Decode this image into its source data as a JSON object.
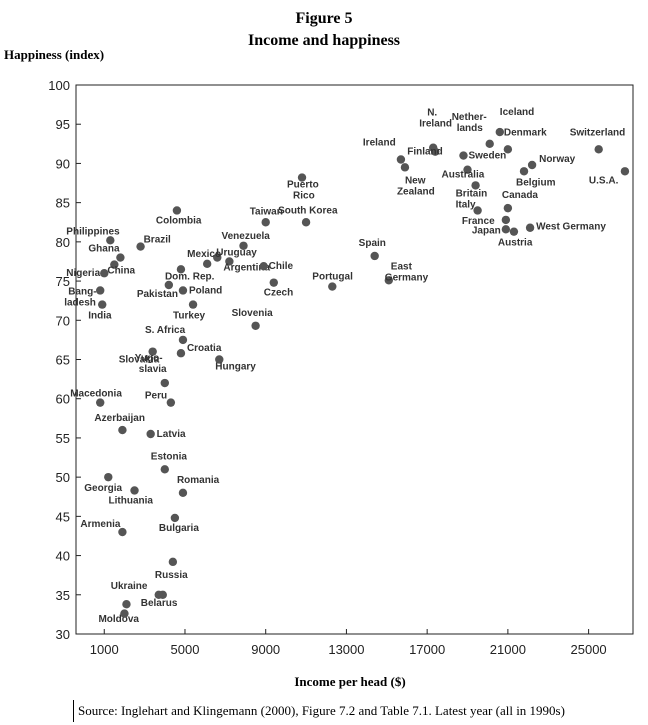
{
  "figure": {
    "number": "Figure 5",
    "title": "Income and happiness",
    "source": "Source: Inglehart and Klingemann (2000), Figure 7.2 and Table 7.1. Latest year (all in 1990s)"
  },
  "chart_data": {
    "type": "scatter",
    "title": "Income and happiness",
    "xlabel": "Income per head ($)",
    "ylabel": "Happiness (index)",
    "xlim": [
      -400,
      27200
    ],
    "ylim": [
      30,
      100
    ],
    "xticks": [
      1000,
      5000,
      9000,
      13000,
      17000,
      21000,
      25000
    ],
    "xtick_labels": [
      "1000",
      "5000",
      "9000",
      "13000",
      "17000",
      "21000",
      "25000"
    ],
    "yticks": [
      30,
      35,
      40,
      45,
      50,
      55,
      60,
      65,
      70,
      75,
      80,
      85,
      90,
      95,
      100
    ],
    "ytick_labels": [
      "30",
      "35",
      "40",
      "45",
      "50",
      "55",
      "60",
      "65",
      "70",
      "75",
      "80",
      "85",
      "90",
      "95",
      "100"
    ],
    "grid": false,
    "points": [
      {
        "label": "Iceland",
        "x": 20600,
        "y": 94.0
      },
      {
        "label": "N. Ireland",
        "x": 17300,
        "y": 92.0
      },
      {
        "label": "Nether-lands",
        "x": 20100,
        "y": 92.5
      },
      {
        "label": "Denmark",
        "x": 21000,
        "y": 91.8
      },
      {
        "label": "Switzerland",
        "x": 25500,
        "y": 91.8
      },
      {
        "label": "Ireland",
        "x": 15700,
        "y": 90.5
      },
      {
        "label": "Finland",
        "x": 17400,
        "y": 91.5
      },
      {
        "label": "Sweden",
        "x": 18800,
        "y": 91.0
      },
      {
        "label": "Norway",
        "x": 22200,
        "y": 89.8
      },
      {
        "label": "U.S.A.",
        "x": 26800,
        "y": 89.0
      },
      {
        "label": "New Zealand",
        "x": 15900,
        "y": 89.5
      },
      {
        "label": "Australia",
        "x": 19000,
        "y": 89.2
      },
      {
        "label": "Belgium",
        "x": 21800,
        "y": 89.0
      },
      {
        "label": "Britain",
        "x": 19400,
        "y": 87.2
      },
      {
        "label": "Puerto Rico",
        "x": 10800,
        "y": 88.2
      },
      {
        "label": "Canada",
        "x": 21000,
        "y": 84.3
      },
      {
        "label": "Italy",
        "x": 19500,
        "y": 84.0
      },
      {
        "label": "Colombia",
        "x": 4600,
        "y": 84.0
      },
      {
        "label": "Taiwan",
        "x": 9000,
        "y": 82.5
      },
      {
        "label": "South Korea",
        "x": 11000,
        "y": 82.5
      },
      {
        "label": "France",
        "x": 20900,
        "y": 82.8
      },
      {
        "label": "West Germany",
        "x": 22100,
        "y": 81.8
      },
      {
        "label": "Japan",
        "x": 20900,
        "y": 81.6
      },
      {
        "label": "Austria",
        "x": 21300,
        "y": 81.3
      },
      {
        "label": "Philippines",
        "x": 1300,
        "y": 80.2
      },
      {
        "label": "Brazil",
        "x": 2800,
        "y": 79.4
      },
      {
        "label": "Venezuela",
        "x": 7900,
        "y": 79.5
      },
      {
        "label": "Ghana",
        "x": 1800,
        "y": 78.0
      },
      {
        "label": "Uruguay",
        "x": 6600,
        "y": 78.0
      },
      {
        "label": "Spain",
        "x": 14400,
        "y": 78.2
      },
      {
        "label": "Mexico",
        "x": 6100,
        "y": 77.2
      },
      {
        "label": "China",
        "x": 1500,
        "y": 77.1
      },
      {
        "label": "Argentina",
        "x": 7200,
        "y": 77.5
      },
      {
        "label": "Chile",
        "x": 8900,
        "y": 76.9
      },
      {
        "label": "Nigeria",
        "x": 1000,
        "y": 76.0
      },
      {
        "label": "Dom. Rep.",
        "x": 4800,
        "y": 76.5
      },
      {
        "label": "East Germany",
        "x": 15100,
        "y": 75.1
      },
      {
        "label": "Czech",
        "x": 9400,
        "y": 74.8
      },
      {
        "label": "Pakistan",
        "x": 4200,
        "y": 74.5
      },
      {
        "label": "Portugal",
        "x": 12300,
        "y": 74.3
      },
      {
        "label": "Bang-ladesh",
        "x": 800,
        "y": 73.8
      },
      {
        "label": "Poland",
        "x": 4900,
        "y": 73.8
      },
      {
        "label": "India",
        "x": 900,
        "y": 72.0
      },
      {
        "label": "Turkey",
        "x": 5400,
        "y": 72.0
      },
      {
        "label": "Slovenia",
        "x": 8500,
        "y": 69.3
      },
      {
        "label": "S. Africa",
        "x": 4900,
        "y": 67.5
      },
      {
        "label": "Croatia",
        "x": 4800,
        "y": 65.8
      },
      {
        "label": "Slovakia",
        "x": 3400,
        "y": 66.0
      },
      {
        "label": "Hungary",
        "x": 6700,
        "y": 65.0
      },
      {
        "label": "Yugo-slavia",
        "x": 4000,
        "y": 62.0
      },
      {
        "label": "Peru",
        "x": 4300,
        "y": 59.5
      },
      {
        "label": "Macedonia",
        "x": 800,
        "y": 59.5
      },
      {
        "label": "Azerbaijan",
        "x": 1900,
        "y": 56.0
      },
      {
        "label": "Latvia",
        "x": 3300,
        "y": 55.5
      },
      {
        "label": "Estonia",
        "x": 4000,
        "y": 51.0
      },
      {
        "label": "Georgia",
        "x": 1200,
        "y": 50.0
      },
      {
        "label": "Lithuania",
        "x": 2500,
        "y": 48.3
      },
      {
        "label": "Romania",
        "x": 4900,
        "y": 48.0
      },
      {
        "label": "Armenia",
        "x": 1900,
        "y": 43.0
      },
      {
        "label": "Bulgaria",
        "x": 4500,
        "y": 44.8
      },
      {
        "label": "Russia",
        "x": 4400,
        "y": 39.2
      },
      {
        "label": "Ukraine",
        "x": 3900,
        "y": 35.0
      },
      {
        "label": "Belarus",
        "x": 3700,
        "y": 35.0
      },
      {
        "label": "Moldova",
        "x": 2100,
        "y": 33.8
      },
      {
        "label": "",
        "x": 2000,
        "y": 32.6
      }
    ]
  }
}
